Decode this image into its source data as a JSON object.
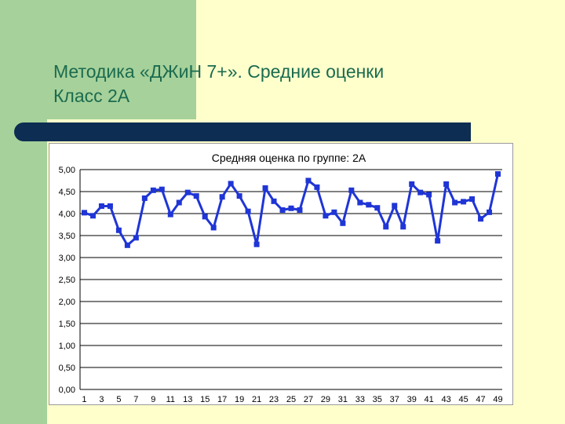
{
  "slide": {
    "title_line1": "Методика «ДЖиН 7+». Средние оценки",
    "title_line2": "Класс 2А"
  },
  "colors": {
    "background": "#ffffcc",
    "accent_green": "#a6d19a",
    "title_text": "#1b6b4f",
    "divider": "#0d2d52",
    "series": "#1f35d6"
  },
  "chart_data": {
    "type": "line",
    "title": "Средняя оценка по группе: 2А",
    "xlabel": "",
    "ylabel": "",
    "ylim": [
      0,
      5
    ],
    "grid": true,
    "yticks": [
      "0,00",
      "0,50",
      "1,00",
      "1,50",
      "2,00",
      "2,50",
      "3,00",
      "3,50",
      "4,00",
      "4,50",
      "5,00"
    ],
    "xtick_labels": [
      "1",
      "3",
      "5",
      "7",
      "9",
      "11",
      "13",
      "15",
      "17",
      "19",
      "21",
      "23",
      "25",
      "27",
      "29",
      "31",
      "33",
      "35",
      "37",
      "39",
      "41",
      "43",
      "45",
      "47",
      "49"
    ],
    "x": [
      1,
      2,
      3,
      4,
      5,
      6,
      7,
      8,
      9,
      10,
      11,
      12,
      13,
      14,
      15,
      16,
      17,
      18,
      19,
      20,
      21,
      22,
      23,
      24,
      25,
      26,
      27,
      28,
      29,
      30,
      31,
      32,
      33,
      34,
      35,
      36,
      37,
      38,
      39,
      40,
      41,
      42,
      43,
      44,
      45,
      46,
      47,
      48,
      49
    ],
    "series": [
      {
        "values": [
          4.02,
          3.95,
          4.17,
          4.17,
          3.62,
          3.28,
          3.45,
          4.35,
          4.53,
          4.55,
          3.98,
          4.25,
          4.48,
          4.4,
          3.93,
          3.68,
          4.38,
          4.68,
          4.4,
          4.05,
          3.3,
          4.58,
          4.28,
          4.08,
          4.12,
          4.08,
          4.75,
          4.6,
          3.95,
          4.03,
          3.78,
          4.53,
          4.25,
          4.2,
          4.13,
          3.7,
          4.18,
          3.7,
          4.67,
          4.48,
          4.43,
          3.38,
          4.67,
          4.25,
          4.27,
          4.33,
          3.88,
          4.03,
          4.9
        ]
      }
    ]
  }
}
